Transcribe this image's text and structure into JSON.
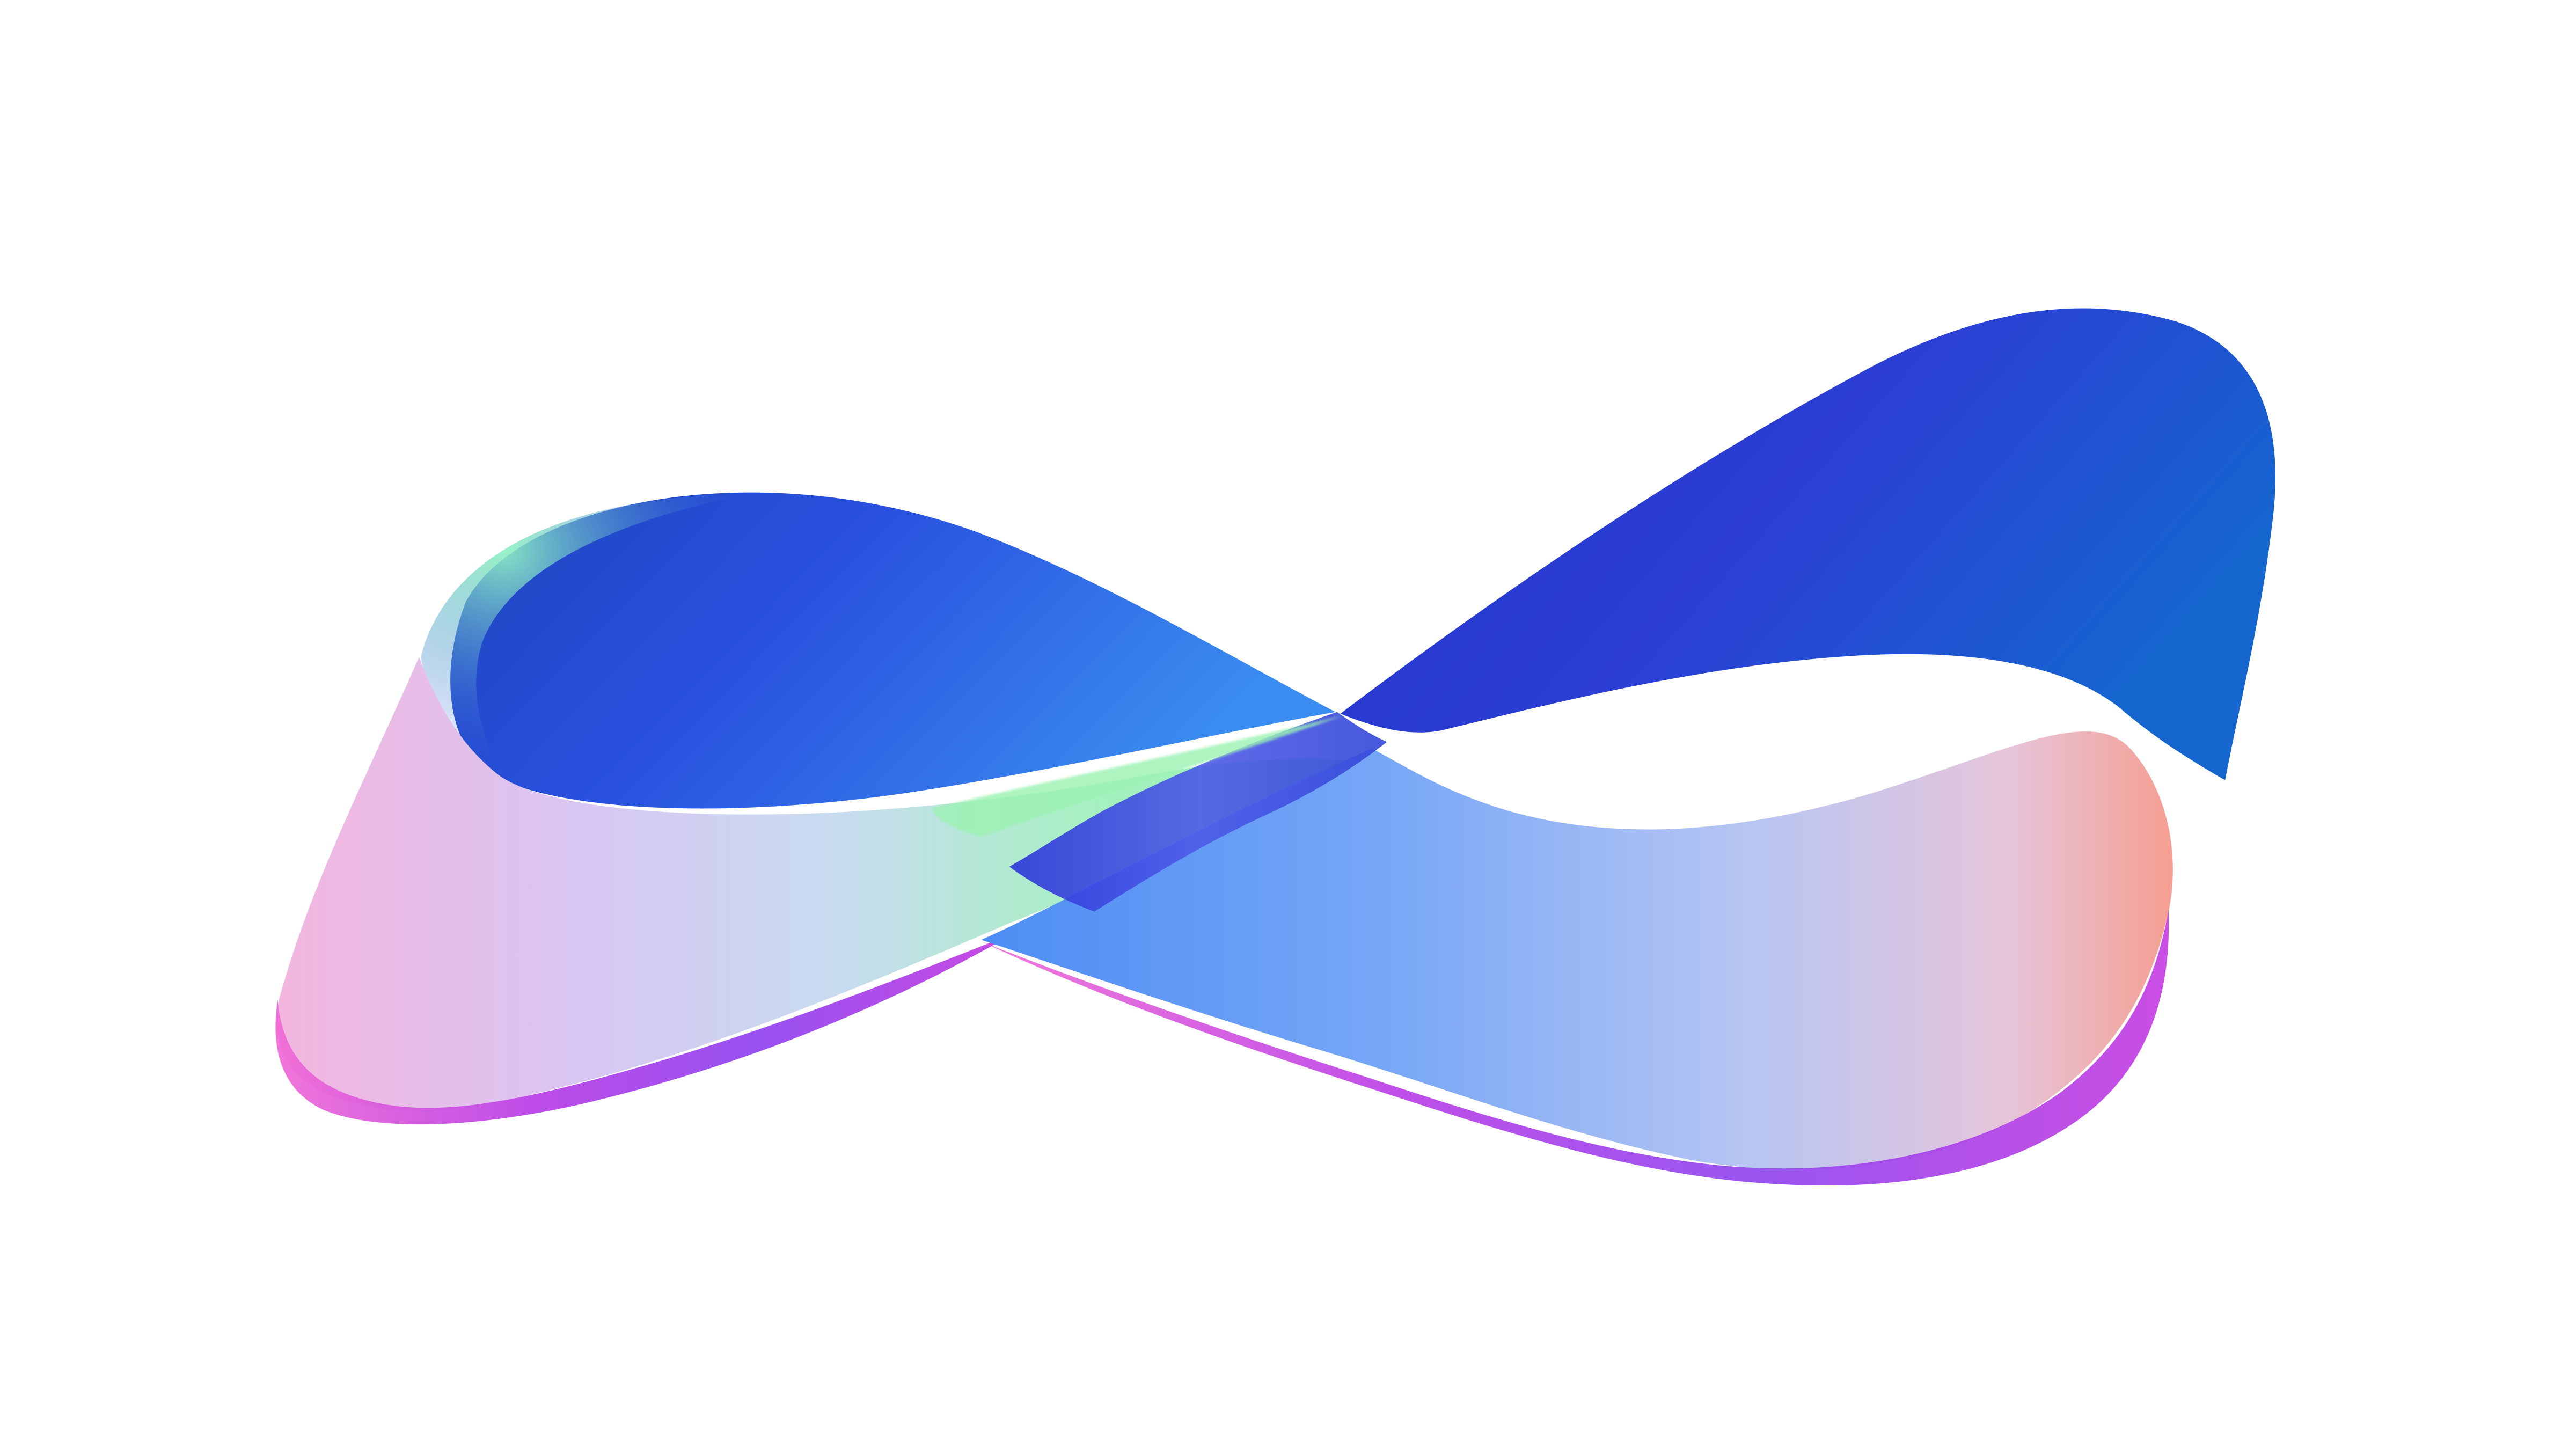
{
  "scene": {
    "subject": "mobius-strip",
    "background_color": "#ffffff",
    "palette": {
      "deep_blue": "#2a2fc9",
      "royal_blue": "#2f55e6",
      "sky_blue": "#5aa0f2",
      "pale_blue": "#a9c7f5",
      "mint": "#9ff2b3",
      "lavender": "#d3b5f0",
      "peach": "#f6a998",
      "magenta": "#c23be0",
      "violet": "#7a2be6"
    }
  }
}
